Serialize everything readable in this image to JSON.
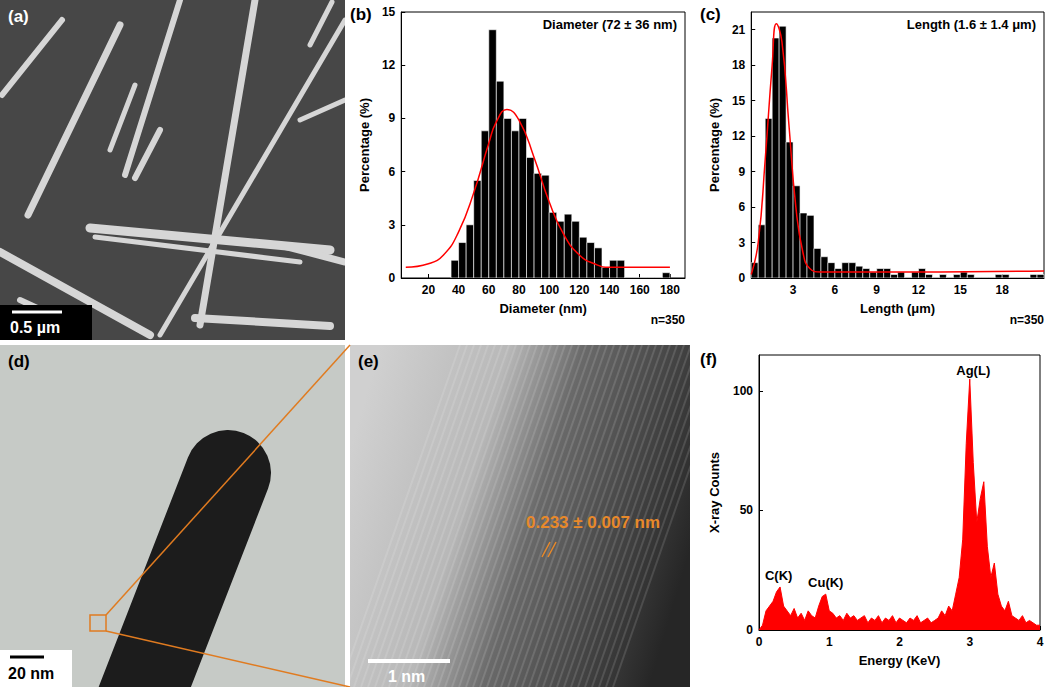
{
  "chart_data": [
    {
      "panel": "(b)",
      "type": "histogram",
      "annotation": "Diameter (72 ± 36 nm)",
      "sample_size": "n=350",
      "xlabel": "Diameter (nm)",
      "ylabel": "Percentage (%)",
      "bins": [
        35,
        40,
        45,
        50,
        55,
        60,
        65,
        70,
        75,
        80,
        85,
        90,
        95,
        100,
        105,
        110,
        115,
        120,
        125,
        130,
        135,
        140,
        145,
        150,
        155,
        160,
        165,
        170,
        175,
        180
      ],
      "values": [
        1,
        2,
        3,
        5.5,
        8.3,
        14,
        11.1,
        9,
        8.3,
        9,
        6.8,
        5.9,
        5.8,
        3.7,
        3.2,
        3.6,
        3.2,
        2.3,
        2,
        1.7,
        0.6,
        1,
        1,
        0,
        0,
        0,
        0,
        0,
        0.3
      ],
      "color": "#000000",
      "fit": {
        "color": "#ff0000",
        "x": [
          5,
          20,
          30,
          40,
          50,
          60,
          65,
          72,
          80,
          90,
          100,
          110,
          120,
          130,
          140,
          160,
          180
        ],
        "y": [
          0.6,
          0.8,
          1.3,
          2.6,
          4.8,
          7.6,
          8.8,
          9.5,
          8.9,
          6.8,
          4.3,
          2.4,
          1.3,
          0.8,
          0.6,
          0.6,
          0.6
        ]
      },
      "xlim": [
        2,
        190
      ],
      "xticks": [
        20,
        40,
        60,
        80,
        100,
        120,
        140,
        160,
        180
      ],
      "ylim": [
        0,
        15
      ],
      "yticks": [
        0,
        3,
        6,
        9,
        12,
        15
      ],
      "grid": false
    },
    {
      "panel": "(c)",
      "type": "histogram",
      "annotation": "Length (1.6 ± 1.4 μm)",
      "sample_size": "n=350",
      "xlabel": "Length (μm)",
      "ylabel": "Percentage (%)",
      "bins": [
        0,
        0.5,
        1,
        1.5,
        2,
        2.5,
        3,
        3.5,
        4,
        4.5,
        5,
        5.5,
        6,
        6.5,
        7,
        7.5,
        8,
        8.5,
        9,
        9.5,
        10,
        10.5,
        11,
        11.5,
        12,
        12.5,
        13,
        13.5,
        14,
        14.5,
        15,
        15.5,
        16,
        16.5,
        17,
        17.5,
        18,
        18.5,
        19,
        19.5,
        20,
        20.5,
        21
      ],
      "values": [
        1.3,
        4.5,
        13.5,
        20.3,
        21.3,
        11.5,
        7.8,
        5.5,
        5.3,
        2.5,
        1.8,
        1.3,
        0.8,
        1.3,
        1.3,
        1.0,
        0.8,
        0.5,
        0.8,
        0.8,
        0.3,
        0.5,
        0,
        0.5,
        0.8,
        0.3,
        0,
        0.3,
        0,
        0.3,
        0.5,
        0.3,
        0,
        0,
        0,
        0.3,
        0.3,
        0,
        0,
        0,
        0.3,
        0.3
      ],
      "color": "#000000",
      "fit": {
        "color": "#ff0000",
        "x": [
          0,
          0.5,
          1,
          1.5,
          1.8,
          2.2,
          2.7,
          3.2,
          3.7,
          4.2,
          5,
          8,
          21
        ],
        "y": [
          0.3,
          3,
          10,
          18,
          21.5,
          20,
          13,
          6,
          2.2,
          0.8,
          0.5,
          0.5,
          0.6
        ]
      },
      "xlim": [
        0,
        21
      ],
      "xticks": [
        3,
        6,
        9,
        12,
        15,
        18
      ],
      "ylim": [
        0,
        22.5
      ],
      "yticks": [
        0,
        3,
        6,
        9,
        12,
        15,
        18,
        21
      ],
      "grid": false
    },
    {
      "panel": "(f)",
      "type": "area",
      "xlabel": "Energy (KeV)",
      "ylabel": "X-ray Counts",
      "x": [
        0,
        0.05,
        0.1,
        0.15,
        0.2,
        0.25,
        0.3,
        0.35,
        0.4,
        0.45,
        0.5,
        0.55,
        0.6,
        0.65,
        0.7,
        0.75,
        0.8,
        0.85,
        0.9,
        0.95,
        1,
        1.05,
        1.1,
        1.15,
        1.2,
        1.25,
        1.3,
        1.35,
        1.4,
        1.45,
        1.5,
        1.55,
        1.6,
        1.65,
        1.7,
        1.75,
        1.8,
        1.85,
        1.9,
        1.95,
        2,
        2.05,
        2.1,
        2.15,
        2.2,
        2.25,
        2.3,
        2.35,
        2.4,
        2.45,
        2.5,
        2.55,
        2.6,
        2.65,
        2.7,
        2.75,
        2.8,
        2.85,
        2.9,
        2.95,
        3,
        3.05,
        3.1,
        3.15,
        3.2,
        3.25,
        3.3,
        3.35,
        3.4,
        3.45,
        3.5,
        3.55,
        3.6,
        3.65,
        3.7,
        3.75,
        3.8,
        3.85,
        3.9,
        3.95,
        4
      ],
      "values": [
        0,
        2,
        8,
        10,
        12,
        16,
        18,
        10,
        8,
        6,
        9,
        5,
        7,
        4,
        8,
        6,
        5,
        10,
        14,
        15,
        8,
        7,
        5,
        6,
        4,
        7,
        5,
        6,
        4,
        5,
        6,
        3,
        5,
        4,
        6,
        3,
        5,
        4,
        6,
        3,
        5,
        4,
        3,
        5,
        4,
        6,
        3,
        4,
        5,
        3,
        4,
        5,
        8,
        6,
        10,
        8,
        15,
        22,
        38,
        78,
        105,
        70,
        45,
        55,
        62,
        35,
        22,
        28,
        15,
        10,
        8,
        12,
        6,
        5,
        4,
        6,
        3,
        4,
        3,
        2,
        2
      ],
      "color": "#ff0000",
      "annotations": [
        {
          "text": "C(K)",
          "x": 0.28,
          "y": 20
        },
        {
          "text": "Cu(K)",
          "x": 0.95,
          "y": 17
        },
        {
          "text": "Ag(L)",
          "x": 3.05,
          "y": 106
        }
      ],
      "xlim": [
        0,
        4
      ],
      "xticks": [
        0,
        1,
        2,
        3,
        4
      ],
      "ylim": [
        0,
        115
      ],
      "yticks": [
        0,
        50,
        100
      ],
      "grid": false
    }
  ],
  "images": [
    {
      "panel": "(a)",
      "scale_bar": "0.5 µm"
    },
    {
      "panel": "(d)",
      "scale_bar": "20 nm"
    },
    {
      "panel": "(e)",
      "scale_bar": "1 nm",
      "annotation": "0.233 ± 0.007 nm"
    }
  ]
}
